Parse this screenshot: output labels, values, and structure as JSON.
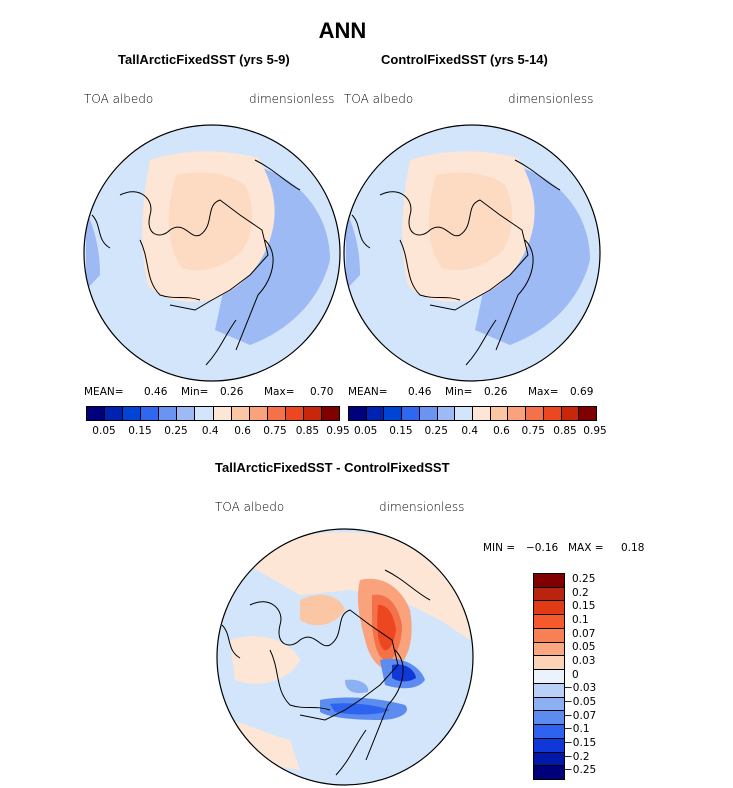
{
  "figure": {
    "title": "ANN"
  },
  "panels": [
    {
      "title": "TallArcticFixedSST (yrs 5-9)",
      "variable": "TOA albedo",
      "units": "dimensionless",
      "stats": {
        "mean_label": "MEAN=",
        "mean": "0.46",
        "min_label": "Min=",
        "min": "0.26",
        "max_label": "Max=",
        "max": "0.70"
      }
    },
    {
      "title": "ControlFixedSST (yrs 5-14)",
      "variable": "TOA albedo",
      "units": "dimensionless",
      "stats": {
        "mean_label": "MEAN=",
        "mean": "0.46",
        "min_label": "Min=",
        "min": "0.26",
        "max_label": "Max=",
        "max": "0.69"
      }
    }
  ],
  "colorbar": {
    "colors": [
      "#00007f",
      "#0022b0",
      "#0044d6",
      "#2f67f0",
      "#6b93f2",
      "#9dbaf4",
      "#d2e5fa",
      "#fde6d5",
      "#fbc6a4",
      "#f9a27b",
      "#f5714a",
      "#ec4721",
      "#c9270b",
      "#800000"
    ],
    "labels": [
      "0.05",
      "0.15",
      "0.25",
      "0.4",
      "0.6",
      "0.75",
      "0.85",
      "0.95"
    ]
  },
  "difference": {
    "title": "TallArcticFixedSST - ControlFixedSST",
    "variable": "TOA albedo",
    "units": "dimensionless",
    "min_label": "MIN =",
    "min": "−0.16",
    "max_label": "MAX =",
    "max": "0.18",
    "legend_colors": [
      "#800000",
      "#b82410",
      "#e03a16",
      "#f55a2d",
      "#f88055",
      "#fba882",
      "#fdd3b7",
      "#eaf2fc",
      "#b9d1f6",
      "#8cb0f2",
      "#5d8cf0",
      "#2d63ee",
      "#1038d8",
      "#0019a8",
      "#00007a"
    ],
    "legend_labels": [
      "0.25",
      "0.2",
      "0.15",
      "0.1",
      "0.07",
      "0.05",
      "0.03",
      "0",
      "−0.03",
      "−0.05",
      "−0.07",
      "−0.1",
      "−0.15",
      "−0.2",
      "−0.25"
    ]
  }
}
